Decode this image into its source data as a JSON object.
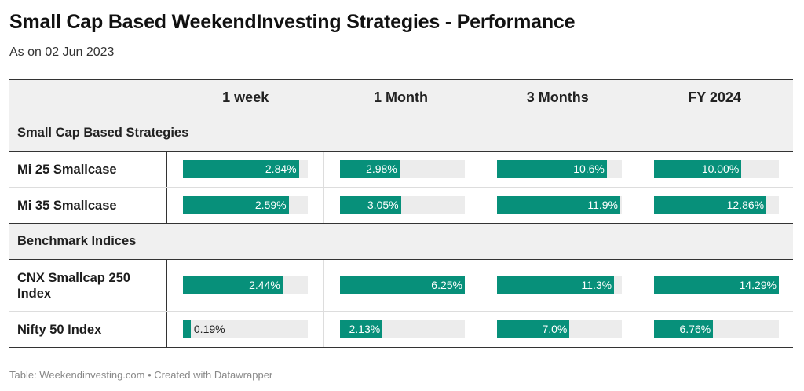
{
  "title": "Small Cap Based WeekendInvesting Strategies - Performance",
  "subtitle": "As on 02 Jun 2023",
  "footer": "Table: Weekendinvesting.com • Created with Datawrapper",
  "colors": {
    "bar": "#07907a",
    "track": "#ececec",
    "header_bg": "#f0f0f0"
  },
  "chart_data": {
    "type": "table",
    "columns": [
      "1 week",
      "1 Month",
      "3 Months",
      "FY 2024"
    ],
    "scale_max": [
      3.06,
      6.25,
      12.05,
      14.29
    ],
    "groups": [
      {
        "name": "Small Cap Based Strategies",
        "rows": [
          {
            "name": "Mi 25 Smallcase",
            "values": [
              2.84,
              2.98,
              10.6,
              10.0
            ],
            "labels": [
              "2.84%",
              "2.98%",
              "10.6%",
              "10.00%"
            ]
          },
          {
            "name": "Mi 35 Smallcase",
            "values": [
              2.59,
              3.05,
              11.9,
              12.86
            ],
            "labels": [
              "2.59%",
              "3.05%",
              "11.9%",
              "12.86%"
            ]
          }
        ]
      },
      {
        "name": "Benchmark Indices",
        "rows": [
          {
            "name": "CNX Smallcap 250 Index",
            "values": [
              2.44,
              6.25,
              11.3,
              14.29
            ],
            "labels": [
              "2.44%",
              "6.25%",
              "11.3%",
              "14.29%"
            ]
          },
          {
            "name": "Nifty 50 Index",
            "values": [
              0.19,
              2.13,
              7.0,
              6.76
            ],
            "labels": [
              "0.19%",
              "2.13%",
              "7.0%",
              "6.76%"
            ]
          }
        ]
      }
    ]
  }
}
